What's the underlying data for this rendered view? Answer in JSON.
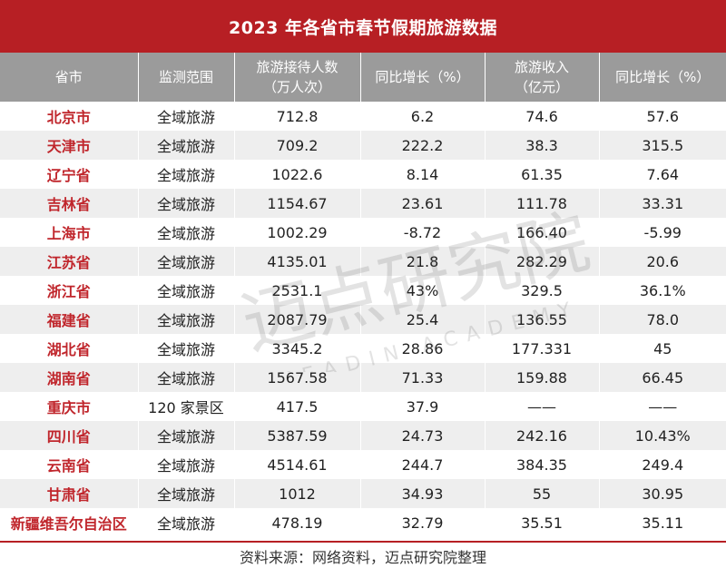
{
  "title": "2023 年各省市春节假期旅游数据",
  "headers": [
    [
      "省市"
    ],
    [
      "监测范围"
    ],
    [
      "旅游接待人数",
      "（万人次）"
    ],
    [
      "同比增长（%）"
    ],
    [
      "旅游收入",
      "（亿元）"
    ],
    [
      "同比增长（%）"
    ]
  ],
  "rows": [
    [
      "北京市",
      "全域旅游",
      "712.8",
      "6.2",
      "74.6",
      "57.6"
    ],
    [
      "天津市",
      "全域旅游",
      "709.2",
      "222.2",
      "38.3",
      "315.5"
    ],
    [
      "辽宁省",
      "全域旅游",
      "1022.6",
      "8.14",
      "61.35",
      "7.64"
    ],
    [
      "吉林省",
      "全域旅游",
      "1154.67",
      "23.61",
      "111.78",
      "33.31"
    ],
    [
      "上海市",
      "全域旅游",
      "1002.29",
      "-8.72",
      "166.40",
      "-5.99"
    ],
    [
      "江苏省",
      "全域旅游",
      "4135.01",
      "21.8",
      "282.29",
      "20.6"
    ],
    [
      "浙江省",
      "全域旅游",
      "2531.1",
      "43%",
      "329.5",
      "36.1%"
    ],
    [
      "福建省",
      "全域旅游",
      "2087.79",
      "25.4",
      "136.55",
      "78.0"
    ],
    [
      "湖北省",
      "全域旅游",
      "3345.2",
      "28.86",
      "177.331",
      "45"
    ],
    [
      "湖南省",
      "全域旅游",
      "1567.58",
      "71.33",
      "159.88",
      "66.45"
    ],
    [
      "重庆市",
      "120 家景区",
      "417.5",
      "37.9",
      "——",
      "——"
    ],
    [
      "四川省",
      "全域旅游",
      "5387.59",
      "24.73",
      "242.16",
      "10.43%"
    ],
    [
      "云南省",
      "全域旅游",
      "4514.61",
      "244.7",
      "384.35",
      "249.4"
    ],
    [
      "甘肃省",
      "全域旅游",
      "1012",
      "34.93",
      "55",
      "30.95"
    ],
    [
      "新疆维吾尔自治区",
      "全域旅游",
      "478.19",
      "32.79",
      "35.51",
      "35.11"
    ]
  ],
  "source": "资料来源：网络资料，迈点研究院整理",
  "watermark": {
    "text": "迈点研究院",
    "subtext": "MEADIN ACADEMY"
  },
  "colors": {
    "title_bg": "#b71f24",
    "header_bg": "#9b9b9b",
    "province_text": "#c0262c",
    "stripe": "#eeeeee"
  }
}
